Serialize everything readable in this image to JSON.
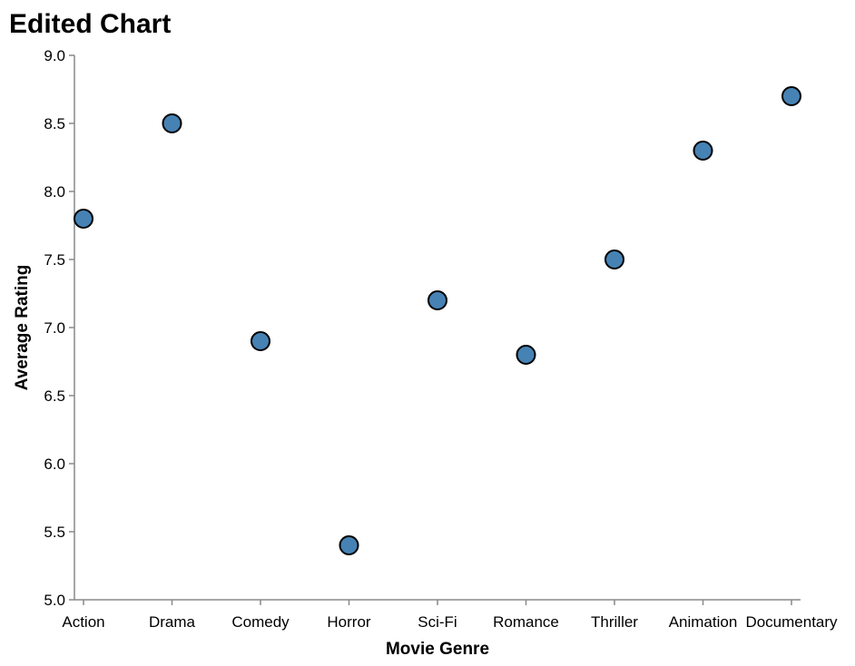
{
  "chart_data": {
    "type": "scatter",
    "title": "Edited Chart",
    "xlabel": "Movie Genre",
    "ylabel": "Average Rating",
    "categories": [
      "Action",
      "Drama",
      "Comedy",
      "Horror",
      "Sci-Fi",
      "Romance",
      "Thriller",
      "Animation",
      "Documentary"
    ],
    "values": [
      7.8,
      8.5,
      6.9,
      5.4,
      7.2,
      6.8,
      7.5,
      8.3,
      8.7
    ],
    "ylim": [
      5.0,
      9.0
    ],
    "yticks": [
      "5.0",
      "5.5",
      "6.0",
      "6.5",
      "7.0",
      "7.5",
      "8.0",
      "8.5",
      "9.0"
    ],
    "grid": false,
    "point_color": "#4682b4"
  }
}
